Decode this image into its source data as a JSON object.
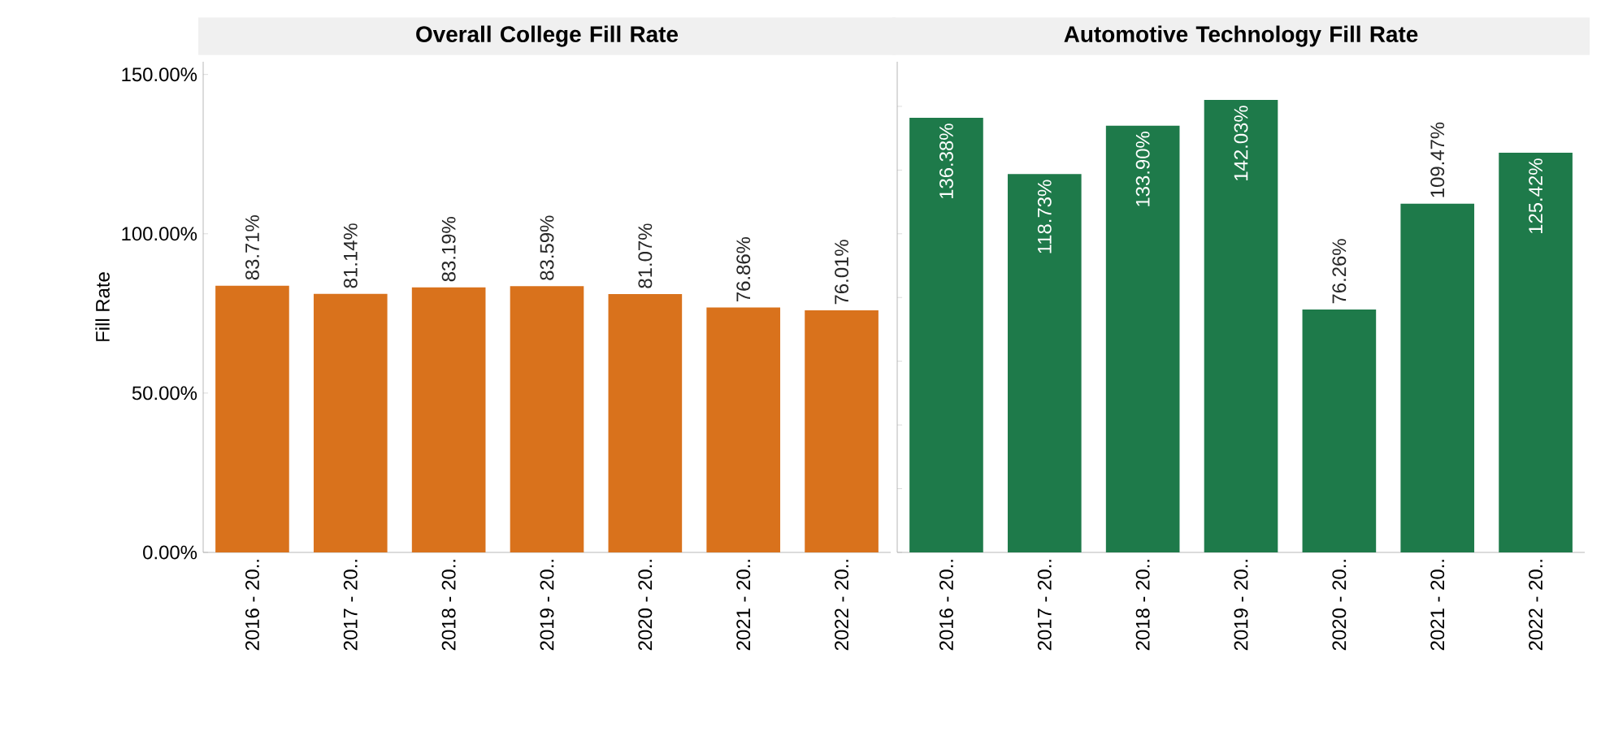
{
  "chart_data": [
    {
      "type": "bar",
      "title": "Overall College Fill Rate",
      "ylabel": "Fill Rate",
      "categories": [
        "2016 - 20..",
        "2017 - 20..",
        "2018 - 20..",
        "2019 - 20..",
        "2020 - 20..",
        "2021 - 20..",
        "2022 - 20.."
      ],
      "values": [
        83.71,
        81.14,
        83.19,
        83.59,
        81.07,
        76.86,
        76.01
      ],
      "value_labels": [
        "83.71%",
        "81.14%",
        "83.19%",
        "83.59%",
        "81.07%",
        "76.86%",
        "76.01%"
      ],
      "color": "#d9721c",
      "ylim": [
        0,
        154
      ],
      "yticks": [
        {
          "value": 0,
          "label": "0.00%"
        },
        {
          "value": 50,
          "label": "50.00%"
        },
        {
          "value": 100,
          "label": "100.00%"
        },
        {
          "value": 150,
          "label": "150.00%"
        }
      ]
    },
    {
      "type": "bar",
      "title": "Automotive Technology Fill Rate",
      "categories": [
        "2016 - 20..",
        "2017 - 20..",
        "2018 - 20..",
        "2019 - 20..",
        "2020 - 20..",
        "2021 - 20..",
        "2022 - 20.."
      ],
      "values": [
        136.38,
        118.73,
        133.9,
        142.03,
        76.26,
        109.47,
        125.42
      ],
      "value_labels": [
        "136.38%",
        "118.73%",
        "133.90%",
        "142.03%",
        "76.26%",
        "109.47%",
        "125.42%"
      ],
      "color": "#1e7a4a",
      "ylim": [
        0,
        154
      ],
      "tick_labels": "x"
    }
  ]
}
